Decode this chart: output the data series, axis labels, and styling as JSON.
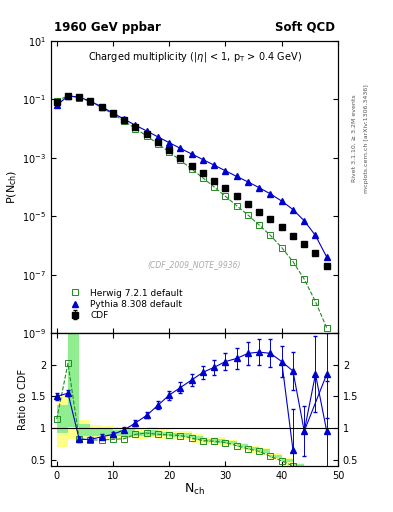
{
  "title_left": "1960 GeV ppbar",
  "title_right": "Soft QCD",
  "main_title": "Charged multiplicity (|#eta| < 1, p_{T} > 0.4 GeV)",
  "xlabel": "N_{ch}",
  "ylabel_main": "P(N_{ch})",
  "ylabel_ratio": "Ratio to CDF",
  "right_label_top": "Rivet 3.1.10, ≥ 3.2M events",
  "right_label_bottom": "mcplots.cern.ch [arXiv:1306.3436]",
  "watermark": "(CDF_2009_NOTE_9936)",
  "xlim": [
    -1,
    50
  ],
  "ylim_main": [
    1e-09,
    10
  ],
  "ylim_ratio": [
    0.4,
    2.5
  ],
  "cdf_x": [
    0,
    1,
    2,
    3,
    4,
    5,
    6,
    7,
    8,
    9,
    10,
    11,
    12,
    13,
    14,
    15,
    16,
    17,
    18,
    19,
    20,
    21,
    22,
    23,
    24,
    25,
    26,
    27,
    28,
    29,
    30,
    31,
    32,
    33,
    34,
    35,
    36,
    37,
    38,
    39,
    40,
    41,
    42,
    43,
    44,
    45,
    46,
    47,
    48
  ],
  "cdf_y": [
    0.079,
    0.0,
    0.13,
    0.0,
    0.12,
    0.0,
    0.086,
    0.0,
    0.056,
    0.0,
    0.034,
    0.0,
    0.02,
    0.0,
    0.011,
    0.0,
    0.0063,
    0.0,
    0.0035,
    0.0,
    0.0019,
    0.0,
    0.00099,
    0.0,
    0.00054,
    0.0,
    0.0003,
    0.0,
    0.000164,
    0.0,
    9e-05,
    0.0,
    4.9e-05,
    0.0,
    2.65e-05,
    0.0,
    1.44e-05,
    0.0,
    7.8e-06,
    0.0,
    4.2e-06,
    0.0,
    2.15e-06,
    0.0,
    1.1e-06,
    0.0,
    5.5e-07,
    0.0,
    2e-07
  ],
  "herwig_x": [
    0,
    1,
    2,
    3,
    4,
    5,
    6,
    7,
    8,
    9,
    10,
    11,
    12,
    13,
    14,
    15,
    16,
    17,
    18,
    19,
    20,
    21,
    22,
    23,
    24,
    25,
    26,
    27,
    28,
    29,
    30,
    31,
    32,
    33,
    34,
    35,
    36,
    37,
    38,
    39,
    40,
    41,
    42,
    43,
    44,
    45,
    46,
    47,
    48
  ],
  "herwig_y": [
    0.09,
    0.0,
    0.132,
    0.0,
    0.116,
    0.0,
    0.083,
    0.0,
    0.053,
    0.0,
    0.031,
    0.0,
    0.018,
    0.0,
    0.01,
    0.0,
    0.0056,
    0.0,
    0.003,
    0.0,
    0.00158,
    0.0,
    0.00082,
    0.0,
    0.00041,
    0.0,
    0.000204,
    0.0,
    0.0001,
    0.0,
    4.8e-05,
    0.0,
    2.3e-05,
    0.0,
    1.1e-05,
    0.0,
    5e-06,
    0.0,
    2.2e-06,
    0.0,
    8.5e-07,
    0.0,
    2.8e-07,
    0.0,
    7e-08,
    0.0,
    1.2e-08,
    0.0,
    1.5e-09
  ],
  "pythia_x": [
    0,
    1,
    2,
    3,
    4,
    5,
    6,
    7,
    8,
    9,
    10,
    11,
    12,
    13,
    14,
    15,
    16,
    17,
    18,
    19,
    20,
    21,
    22,
    23,
    24,
    25,
    26,
    27,
    28,
    29,
    30,
    31,
    32,
    33,
    34,
    35,
    36,
    37,
    38,
    39,
    40,
    41,
    42,
    43,
    44,
    45,
    46,
    47,
    48
  ],
  "pythia_y": [
    0.062,
    0.0,
    0.132,
    0.0,
    0.12,
    0.0,
    0.086,
    0.0,
    0.056,
    0.0,
    0.034,
    0.0,
    0.021,
    0.0,
    0.013,
    0.0,
    0.0083,
    0.0,
    0.0052,
    0.0,
    0.0033,
    0.0,
    0.0021,
    0.0,
    0.00135,
    0.0,
    0.00087,
    0.0,
    0.00056,
    0.0,
    0.00036,
    0.0,
    0.00023,
    0.0,
    0.00015,
    0.0,
    9.5e-05,
    0.0,
    5.8e-05,
    0.0,
    3.3e-05,
    0.0,
    1.7e-05,
    0.0,
    7e-06,
    0.0,
    2.2e-06,
    0.0,
    4e-07
  ],
  "cdf_yerr_lo": [
    0.003,
    0.0,
    0.003,
    0.0,
    0.002,
    0.0,
    0.002,
    0.0,
    0.001,
    0.0,
    0.001,
    0.0,
    0.0004,
    0.0,
    0.0003,
    0.0,
    0.00015,
    0.0,
    8e-05,
    0.0,
    4e-05,
    0.0,
    2e-05,
    0.0,
    1e-05,
    0.0,
    5e-06,
    0.0,
    3e-06,
    0.0,
    1.5e-06,
    0.0,
    8e-07,
    0.0,
    4e-07,
    0.0,
    2e-07,
    0.0,
    1e-07,
    0.0,
    5e-08,
    0.0,
    2.5e-08,
    0.0,
    1.3e-08,
    0.0,
    6e-09,
    0.0,
    3e-09
  ],
  "color_cdf": "#000000",
  "color_herwig": "#228B22",
  "color_pythia": "#0000cc",
  "color_band_green": "#90EE90",
  "color_band_yellow": "#FFFF88",
  "legend_cdf": "CDF",
  "legend_herwig": "Herwig 7.2.1 default",
  "legend_pythia": "Pythia 8.308 default"
}
